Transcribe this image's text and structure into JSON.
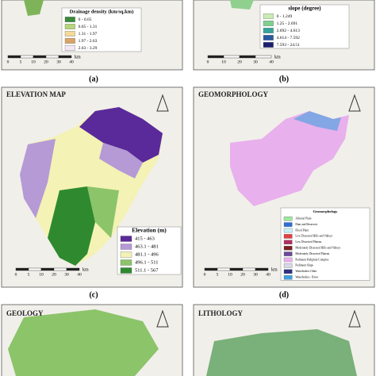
{
  "panels": [
    {
      "label": "(a)",
      "legend": {
        "title": "Drainage density (km/sq.km)",
        "items": [
          {
            "text": "0 - 0.65",
            "color": "#3a8a3a"
          },
          {
            "text": "0.65 - 1.31",
            "color": "#b5d67a"
          },
          {
            "text": "1.31 - 1.97",
            "color": "#f3d99a"
          },
          {
            "text": "1.97 - 2.63",
            "color": "#d9a466"
          },
          {
            "text": "2.63 - 3.29",
            "color": "#f4e8f4"
          }
        ]
      },
      "scale": [
        "0",
        "5",
        "10",
        "20",
        "30",
        "40"
      ],
      "unit": "km"
    },
    {
      "label": "(b)",
      "legend": {
        "title": "slope (degree)",
        "items": [
          {
            "text": "0 - 1.249",
            "color": "#c9ecb4"
          },
          {
            "text": "1.25 - 2.691",
            "color": "#7fcf8f"
          },
          {
            "text": "2.692 - 4.613",
            "color": "#36a39a"
          },
          {
            "text": "4.614 - 7.592",
            "color": "#2a5aa0"
          },
          {
            "text": "7.593 - 24.51",
            "color": "#1c1f6e"
          }
        ]
      },
      "scale": [
        "0",
        "10",
        "20",
        "30",
        "40"
      ],
      "unit": "km"
    },
    {
      "label": "(c)",
      "title": "ELEVATION MAP",
      "legend": {
        "title": "Elevation (m)",
        "items": [
          {
            "text": "415 - 463",
            "color": "#5a2a9a"
          },
          {
            "text": "463.1 - 481",
            "color": "#b59ad6"
          },
          {
            "text": "481.1 - 496",
            "color": "#f4f2b4"
          },
          {
            "text": "496.1 - 511",
            "color": "#8cc46a"
          },
          {
            "text": "511.1 - 567",
            "color": "#2f8a2f"
          }
        ]
      },
      "scale": [
        "0",
        "5",
        "10",
        "20",
        "30",
        "40"
      ],
      "unit": "km"
    },
    {
      "label": "(d)",
      "title": "GEOMORPHOLOGY",
      "legend": {
        "title": "Geomorphology",
        "items": [
          {
            "text": "Alluvial Plain",
            "color": "#9ee6a0"
          },
          {
            "text": "Dam and Reservoir",
            "color": "#2b6fd6"
          },
          {
            "text": "Flood Plain",
            "color": "#c8f0f8"
          },
          {
            "text": "Low Dissected Hills and Valleys",
            "color": "#e04040"
          },
          {
            "text": "Low Dissected Plateau",
            "color": "#b03060"
          },
          {
            "text": "Moderately Dissected Hills and Valleys",
            "color": "#7a2020"
          },
          {
            "text": "Moderately Dissected Plateau",
            "color": "#6a4a9a"
          },
          {
            "text": "Pediment Pediplain Complex",
            "color": "#e8b0ec"
          },
          {
            "text": "Pediment Slope",
            "color": "#d8d8e8"
          },
          {
            "text": "Waterbodies Other",
            "color": "#303080"
          },
          {
            "text": "Waterbodies - River",
            "color": "#40a0e0"
          }
        ]
      },
      "scale": [
        "0",
        "5",
        "10",
        "20",
        "30",
        "40"
      ],
      "unit": "km"
    },
    {
      "title": "GEOLOGY"
    },
    {
      "title": "LITHOLOGY"
    }
  ]
}
